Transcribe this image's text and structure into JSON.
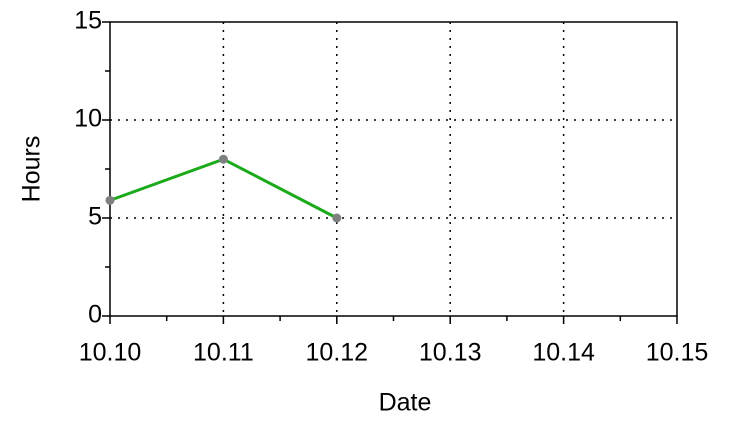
{
  "chart_data": {
    "type": "line",
    "x_label": "Date",
    "y_label": "Hours",
    "categories": [
      "10.10",
      "10.11",
      "10.12",
      "10.13",
      "10.14",
      "10.15"
    ],
    "series": [
      {
        "name": "Hours",
        "color": "#1aaa1a",
        "marker_color": "#808080",
        "values": [
          5.9,
          8,
          5,
          null,
          null,
          null
        ]
      }
    ],
    "ylim": [
      0,
      15
    ],
    "yticks": [
      0,
      5,
      10,
      15
    ],
    "grid": true
  }
}
